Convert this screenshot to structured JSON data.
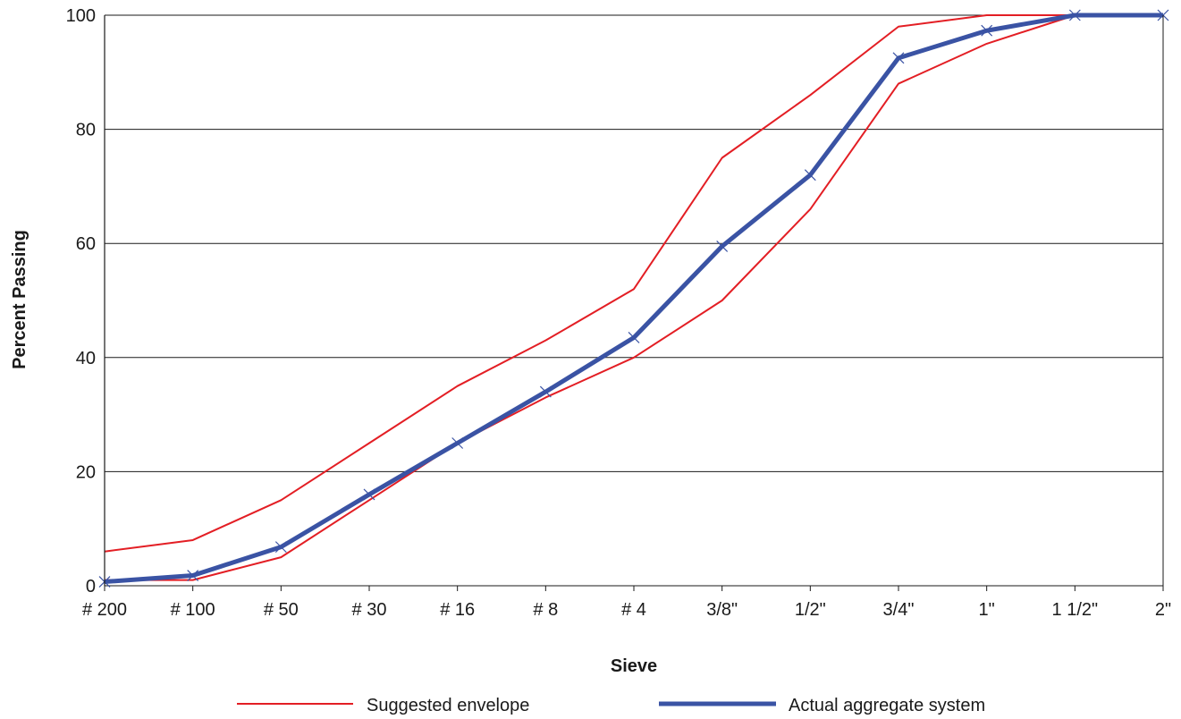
{
  "chart_data": {
    "type": "line",
    "xlabel": "Sieve",
    "ylabel": "Percent Passing",
    "categories": [
      "# 200",
      "# 100",
      "# 50",
      "# 30",
      "# 16",
      "# 8",
      "# 4",
      "3/8\"",
      "1/2\"",
      "3/4\"",
      "1\"",
      "1 1/2\"",
      "2\""
    ],
    "ylim": [
      0,
      100
    ],
    "yticks": [
      0,
      20,
      40,
      60,
      80,
      100
    ],
    "grid": "horizontal",
    "legend_position": "bottom",
    "series": [
      {
        "name": "Suggested envelope",
        "role": "upper",
        "color": "#e31e24",
        "values": [
          6,
          8,
          15,
          25,
          35,
          43,
          52,
          75,
          86,
          98,
          100,
          100,
          100
        ]
      },
      {
        "name": "Suggested envelope",
        "role": "lower",
        "color": "#e31e24",
        "values": [
          1,
          1,
          5,
          15,
          25,
          33,
          40,
          50,
          66,
          88,
          95,
          100,
          100
        ]
      },
      {
        "name": "Actual aggregate system",
        "role": "actual",
        "color": "#3a53a4",
        "values": [
          0.7,
          1.8,
          6.8,
          16,
          25,
          34,
          43.5,
          59.5,
          72,
          92.5,
          97.3,
          100,
          100
        ]
      }
    ],
    "legend": [
      {
        "label": "Suggested envelope",
        "color": "#e31e24"
      },
      {
        "label": "Actual aggregate system",
        "color": "#3a53a4"
      }
    ]
  }
}
